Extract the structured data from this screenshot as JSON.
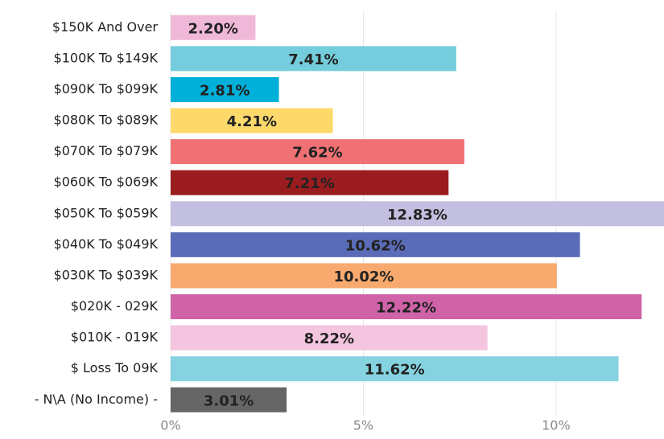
{
  "chart_data": {
    "type": "bar",
    "orientation": "horizontal",
    "categories": [
      "$150K And Over",
      "$100K To $149K",
      "$090K To $099K",
      "$080K To $089K",
      "$070K To $079K",
      "$060K To $069K",
      "$050K To $059K",
      "$040K To $049K",
      "$030K To $039K",
      "$020K - 029K",
      "$010K - 019K",
      "$ Loss To 09K",
      "- N\\A (No Income) -"
    ],
    "values": [
      2.2,
      7.41,
      2.81,
      4.21,
      7.62,
      7.21,
      12.83,
      10.62,
      10.02,
      12.22,
      8.22,
      11.62,
      3.01
    ],
    "value_labels": [
      "2.20%",
      "7.41%",
      "2.81%",
      "4.21%",
      "7.62%",
      "7.21%",
      "12.83%",
      "10.62%",
      "10.02%",
      "12.22%",
      "8.22%",
      "11.62%",
      "3.01%"
    ],
    "colors": [
      "#f0b8d8",
      "#74cddc",
      "#00b0d8",
      "#fdd96b",
      "#f07173",
      "#9b1c1f",
      "#c3bfe0",
      "#5a6cb8",
      "#f8aa6e",
      "#d063a8",
      "#f4c5df",
      "#85d3e0",
      "#666666"
    ],
    "xlim": [
      0,
      12.8
    ],
    "xticks": [
      {
        "value": 0,
        "label": "0%"
      },
      {
        "value": 5,
        "label": "5%"
      },
      {
        "value": 10,
        "label": "10%"
      }
    ],
    "grid": true
  }
}
